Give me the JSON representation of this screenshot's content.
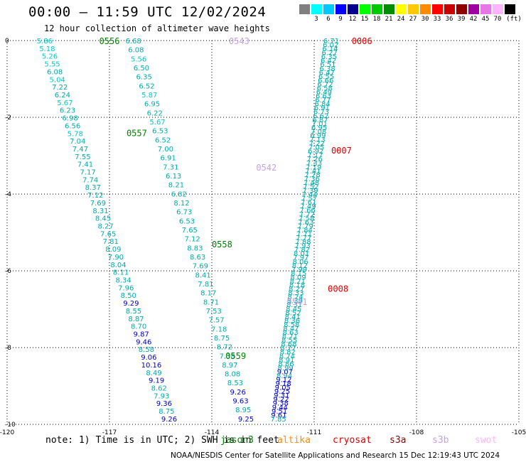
{
  "header": {
    "title": "00:00 — 11:59 UTC 12/02/2024",
    "subtitle": "12 hour collection of altimeter wave heights"
  },
  "color_scale": {
    "unit": "(ft)",
    "bins": [
      {
        "color": "#808080",
        "label": ""
      },
      {
        "color": "#00ffff",
        "label": "3"
      },
      {
        "color": "#00c8ff",
        "label": "6"
      },
      {
        "color": "#0000ff",
        "label": "9"
      },
      {
        "color": "#00008c",
        "label": "12"
      },
      {
        "color": "#00ff00",
        "label": "15"
      },
      {
        "color": "#00c800",
        "label": "18"
      },
      {
        "color": "#008c00",
        "label": "21"
      },
      {
        "color": "#ffff00",
        "label": "24"
      },
      {
        "color": "#ffc800",
        "label": "27"
      },
      {
        "color": "#ff8c00",
        "label": "30"
      },
      {
        "color": "#ff0000",
        "label": "33"
      },
      {
        "color": "#c80000",
        "label": "36"
      },
      {
        "color": "#8c0000",
        "label": "39"
      },
      {
        "color": "#a000a0",
        "label": "42"
      },
      {
        "color": "#e678e6",
        "label": "45"
      },
      {
        "color": "#ffb4ff",
        "label": "70"
      },
      {
        "color": "#000000",
        "label": ""
      }
    ]
  },
  "map": {
    "lon_range": [
      -120,
      -105
    ],
    "lat_range": [
      -10,
      0
    ],
    "x_ticks": [
      {
        "value": -120,
        "label": "-120"
      },
      {
        "value": -117,
        "label": "-117"
      },
      {
        "value": -114,
        "label": "-114"
      },
      {
        "value": -111,
        "label": "-111"
      },
      {
        "value": -108,
        "label": "-108"
      },
      {
        "value": -105,
        "label": "-105"
      }
    ],
    "y_ticks": [
      {
        "value": 0,
        "label": "0"
      },
      {
        "value": -2,
        "label": "-2"
      },
      {
        "value": -4,
        "label": "-4"
      },
      {
        "value": -6,
        "label": "-6"
      },
      {
        "value": -8,
        "label": "-8"
      },
      {
        "value": -10,
        "label": "-10"
      }
    ],
    "grid": "dotted"
  },
  "tracks": [
    {
      "name": "jason3",
      "color": "#00aaaa",
      "lon_start": -118.9,
      "lon_end": -115.25,
      "lat_start": 0,
      "lat_end": -9.85,
      "values": [
        "5.86",
        "5.18",
        "5.26",
        "5.55",
        "6.08",
        "5.04",
        "7.22",
        "6.24",
        "5.67",
        "6.23",
        "6.98",
        "6.56",
        "5.78",
        "7.04",
        "7.47",
        "7.55",
        "7.41",
        "7.17",
        "7.74",
        "8.37",
        "7.12",
        "7.69",
        "8.31",
        "8.45",
        "8.27",
        "7.65",
        "7.81",
        "8.09",
        "7.90",
        "8.04",
        "8.11",
        "8.34",
        "7.96",
        "8.50",
        "9.29",
        "8.55",
        "8.87",
        "8.70",
        "9.87",
        "9.46",
        "8.58",
        "9.06",
        "10.16",
        "8.49",
        "9.19",
        "8.62",
        "7.93",
        "9.36",
        "8.75",
        "9.26"
      ]
    },
    {
      "name": "jason3",
      "color": "#00aaaa",
      "lon_start": -116.3,
      "lon_end": -113.0,
      "lat_start": 0,
      "lat_end": -9.85,
      "values": [
        "6.68",
        "6.08",
        "5.56",
        "6.50",
        "6.35",
        "6.52",
        "5.87",
        "6.95",
        "6.22",
        "5.67",
        "6.53",
        "6.52",
        "7.00",
        "6.91",
        "7.31",
        "6.13",
        "8.21",
        "6.82",
        "8.12",
        "6.73",
        "6.53",
        "7.65",
        "7.12",
        "8.83",
        "8.63",
        "7.69",
        "8.41",
        "7.81",
        "8.17",
        "8.71",
        "7.53",
        "7.57",
        "7.18",
        "8.75",
        "8.72",
        "7.38",
        "8.97",
        "8.08",
        "8.53",
        "9.26",
        "9.63",
        "8.95",
        "9.25"
      ]
    },
    {
      "name": "cryosat",
      "color": "#00aaaa",
      "lon_start": -110.5,
      "lon_end": -112.05,
      "lat_start": 0,
      "lat_end": -9.85,
      "values": [
        "6.71",
        "6.02",
        "6.14",
        "6.27",
        "6.35",
        "6.42",
        "6.51",
        "6.38",
        "6.47",
        "6.55",
        "6.66",
        "6.72",
        "6.58",
        "6.49",
        "6.63",
        "6.77",
        "6.84",
        "6.91",
        "6.73",
        "6.62",
        "6.87",
        "7.01",
        "6.95",
        "7.08",
        "6.99",
        "7.13",
        "7.22",
        "7.05",
        "6.92",
        "7.17",
        "7.26",
        "7.33",
        "7.19",
        "7.41",
        "7.28",
        "7.36",
        "7.48",
        "7.52",
        "7.39",
        "7.44",
        "7.57",
        "7.61",
        "7.49",
        "7.66",
        "7.72",
        "7.58",
        "7.63",
        "7.79",
        "7.84",
        "7.71",
        "7.77",
        "7.88",
        "7.93",
        "7.82",
        "8.01",
        "7.97",
        "8.06",
        "8.12",
        "7.99",
        "8.15",
        "8.09",
        "8.21",
        "8.18",
        "8.27",
        "8.33",
        "8.24",
        "8.39",
        "8.31",
        "8.45",
        "8.52",
        "8.41",
        "8.36",
        "8.58",
        "8.47",
        "8.63",
        "8.71",
        "8.55",
        "8.68",
        "8.77",
        "8.82",
        "8.74",
        "8.91",
        "8.86",
        "8.99",
        "9.07",
        "8.94",
        "9.12",
        "9.18",
        "9.05",
        "9.25",
        "9.31",
        "9.22",
        "9.38",
        "9.44",
        "9.51",
        "9.61",
        "7.85"
      ]
    }
  ],
  "orbit_labels": [
    {
      "text": "0556",
      "lon": -117.0,
      "lat": 0,
      "color": "#008000"
    },
    {
      "text": "0543",
      "lon": -113.2,
      "lat": 0,
      "color": "#c8a0e6"
    },
    {
      "text": "0006",
      "lon": -109.6,
      "lat": 0,
      "color": "#e00000"
    },
    {
      "text": "0557",
      "lon": -116.2,
      "lat": -2.4,
      "color": "#008000"
    },
    {
      "text": "0007",
      "lon": -110.2,
      "lat": -2.85,
      "color": "#e00000"
    },
    {
      "text": "0542",
      "lon": -112.4,
      "lat": -3.3,
      "color": "#c8a0e6"
    },
    {
      "text": "0558",
      "lon": -113.7,
      "lat": -5.3,
      "color": "#008000"
    },
    {
      "text": "0008",
      "lon": -110.3,
      "lat": -6.45,
      "color": "#e00000"
    },
    {
      "text": "0541",
      "lon": -111.5,
      "lat": -6.8,
      "color": "#c8a0e6"
    },
    {
      "text": "0559",
      "lon": -113.3,
      "lat": -8.2,
      "color": "#008000"
    }
  ],
  "footer": {
    "note": "note: 1) Time is in UTC; 2) SWH is in feet",
    "credit": "NOAA/NESDIS Center for Satellite Applications and Research   15 Dec 12:19:43 UTC 2024"
  },
  "satellite_legend": [
    {
      "name": "jason3",
      "color": "#008000"
    },
    {
      "name": "altika",
      "color": "#ff8c00"
    },
    {
      "name": "cryosat",
      "color": "#e00000"
    },
    {
      "name": "s3a",
      "color": "#8c0000"
    },
    {
      "name": "s3b",
      "color": "#c8a0e6"
    },
    {
      "name": "swot",
      "color": "#ffb4ff"
    }
  ]
}
